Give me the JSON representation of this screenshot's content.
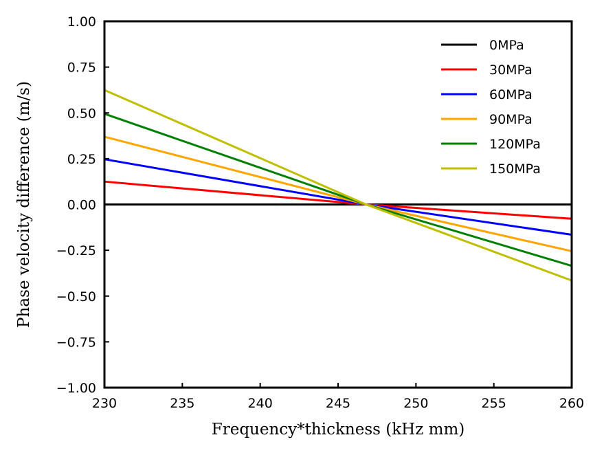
{
  "chart_data": {
    "type": "line",
    "title": "",
    "xlabel": "Frequency*thickness (kHz mm)",
    "ylabel": "Phase velocity difference (m/s)",
    "xlim": [
      230,
      260
    ],
    "ylim": [
      -1.0,
      1.0
    ],
    "xticks": [
      230,
      235,
      240,
      245,
      250,
      255,
      260
    ],
    "yticks": [
      -1.0,
      -0.75,
      -0.5,
      -0.25,
      0.0,
      0.25,
      0.5,
      0.75,
      1.0
    ],
    "xtick_labels": [
      "230",
      "235",
      "240",
      "245",
      "250",
      "255",
      "260"
    ],
    "ytick_labels": [
      "−1.00",
      "−0.75",
      "−0.50",
      "−0.25",
      "0.00",
      "0.25",
      "0.50",
      "0.75",
      "1.00"
    ],
    "grid": false,
    "legend_position": "top-right",
    "x": [
      230,
      246.8,
      260
    ],
    "series": [
      {
        "name": "0MPa",
        "color": "#000000",
        "values": [
          0.0,
          0.0,
          0.0
        ]
      },
      {
        "name": "30MPa",
        "color": "#ff0000",
        "values": [
          0.125,
          0.0,
          -0.078
        ]
      },
      {
        "name": "60MPa",
        "color": "#0000ff",
        "values": [
          0.247,
          0.0,
          -0.165
        ]
      },
      {
        "name": "90MPa",
        "color": "#ffa500",
        "values": [
          0.37,
          0.0,
          -0.255
        ]
      },
      {
        "name": "120MPa",
        "color": "#008000",
        "values": [
          0.495,
          0.0,
          -0.335
        ]
      },
      {
        "name": "150MPa",
        "color": "#bfbf00",
        "values": [
          0.625,
          0.0,
          -0.415
        ]
      }
    ]
  }
}
